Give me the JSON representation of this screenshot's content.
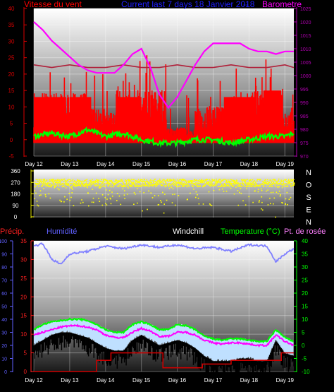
{
  "colors": {
    "wind": "#ff0000",
    "wind_axis": "#d80000",
    "baro": "#ff00ff",
    "baro_axis": "#b000b0",
    "title": "#2020ff",
    "gust_avg": "#b0203a",
    "avg_wind": "#00ff00",
    "direction": "#ffff00",
    "humidity": "#8080ff",
    "windchill": "#ffffff",
    "temperature": "#00ff00",
    "dewpoint": "#ff00ff",
    "precip": "#ff0000",
    "precip_axis": "#ff2020",
    "hum_axis": "#6060ff"
  },
  "chart_data": [
    {
      "type": "line",
      "name": "wind-pressure",
      "title": "Current last 7 days 18 Janvier 2018",
      "left_label": "Vitesse du vent",
      "right_label": "Barometre",
      "categories": [
        "Day 12",
        "Day 13",
        "Day 14",
        "Day 15",
        "Day 16",
        "Day 17",
        "Day 18",
        "Day 19"
      ],
      "ylim_left": [
        -5,
        40
      ],
      "yticks_left": [
        -5,
        0,
        5,
        10,
        15,
        20,
        25,
        30,
        35,
        40
      ],
      "ylim_right": [
        970,
        1025
      ],
      "yticks_right": [
        970,
        975,
        980,
        985,
        990,
        995,
        1000,
        1005,
        1010,
        1015,
        1020,
        1025
      ],
      "grid": true,
      "series": [
        {
          "key": "pressure",
          "axis": "right",
          "x": [
            12.0,
            12.25,
            12.5,
            12.75,
            13.0,
            13.25,
            13.5,
            13.75,
            14.0,
            14.25,
            14.5,
            14.75,
            15.0,
            15.25,
            15.5,
            15.75,
            16.0,
            16.25,
            16.5,
            16.75,
            17.0,
            17.25,
            17.5,
            17.75,
            18.0,
            18.25,
            18.5,
            18.75,
            19.0,
            19.25
          ],
          "values": [
            1020,
            1017,
            1013,
            1010,
            1007,
            1004,
            1002,
            1001,
            1001,
            1001,
            1004,
            1008,
            1010,
            1003,
            993,
            988,
            992,
            998,
            1004,
            1009,
            1012,
            1012,
            1012,
            1012,
            1010,
            1009,
            1009,
            1008,
            1009,
            1009
          ]
        },
        {
          "key": "gust_level",
          "axis": "right",
          "x": [
            12.0,
            12.5,
            13.0,
            13.5,
            14.0,
            14.5,
            15.0,
            15.5,
            16.0,
            16.5,
            17.0,
            17.5,
            18.0,
            18.5,
            19.0,
            19.25
          ],
          "values": [
            1004,
            1003,
            1004,
            1003,
            1003,
            1004,
            1003,
            1003,
            1004,
            1003,
            1003,
            1004,
            1003,
            1003,
            1004,
            1003
          ]
        },
        {
          "key": "avg_wind",
          "axis": "left",
          "x": [
            12.0,
            12.5,
            13.0,
            13.5,
            14.0,
            14.5,
            15.0,
            15.5,
            16.0,
            16.5,
            17.0,
            17.5,
            18.0,
            18.5,
            19.0,
            19.25
          ],
          "values": [
            1,
            2,
            1,
            3,
            1,
            2,
            0,
            -1,
            -1,
            0,
            0,
            -1,
            0,
            1,
            1,
            2
          ]
        }
      ]
    },
    {
      "type": "scatter",
      "name": "wind-direction",
      "categories": [
        "Day 12",
        "Day 13",
        "Day 14",
        "Day 15",
        "Day 16",
        "Day 17",
        "Day 18",
        "Day 19"
      ],
      "ylim": [
        0,
        360
      ],
      "yticks": [
        0,
        90,
        180,
        270,
        360
      ],
      "ytick_labels": [
        "0",
        "90",
        "180",
        "270",
        "360"
      ],
      "compass": [
        "N",
        "O",
        "S",
        "E",
        "N"
      ],
      "dominant_direction": 270
    },
    {
      "type": "line",
      "name": "temperature-humidity",
      "labels": {
        "precip": "Précip.",
        "humidity": "Humidité",
        "windchill": "Windchill",
        "temperature": "Temperature (°C)",
        "dewpoint": "Pt. de rosée"
      },
      "categories": [
        "Day 12",
        "Day 13",
        "Day 14",
        "Day 15",
        "Day 16",
        "Day 17",
        "Day 18",
        "Day 19"
      ],
      "ylim_precip": [
        0,
        35
      ],
      "yticks_precip": [
        0,
        5,
        10,
        15,
        20,
        25,
        30,
        35
      ],
      "ylim_humidity": [
        0,
        100
      ],
      "yticks_humidity": [
        0,
        10,
        20,
        30,
        40,
        50,
        60,
        70,
        80,
        90,
        100
      ],
      "ylim_temp": [
        -10,
        40
      ],
      "yticks_temp": [
        -10,
        -5,
        0,
        5,
        10,
        15,
        20,
        25,
        30,
        35,
        40
      ],
      "grid": true,
      "series": [
        {
          "key": "humidity",
          "axis": "humidity",
          "x": [
            12.0,
            12.25,
            12.5,
            12.75,
            13.0,
            13.5,
            14.0,
            14.5,
            15.0,
            15.5,
            16.0,
            16.5,
            17.0,
            17.5,
            18.0,
            18.5,
            18.75,
            19.0,
            19.25
          ],
          "values": [
            96,
            98,
            86,
            82,
            90,
            92,
            96,
            94,
            97,
            95,
            97,
            94,
            95,
            92,
            97,
            96,
            84,
            90,
            94
          ]
        },
        {
          "key": "temperature",
          "axis": "temp",
          "x": [
            12.0,
            12.25,
            12.5,
            12.75,
            13.0,
            13.25,
            13.5,
            13.75,
            14.0,
            14.25,
            14.5,
            14.75,
            15.0,
            15.25,
            15.5,
            15.75,
            16.0,
            16.25,
            16.5,
            16.75,
            17.0,
            17.25,
            17.5,
            17.75,
            18.0,
            18.25,
            18.5,
            18.75,
            19.0,
            19.25
          ],
          "values": [
            6,
            8,
            9,
            9.5,
            10,
            10,
            9.5,
            8,
            6,
            5,
            5,
            8,
            9,
            8,
            6,
            6,
            8,
            7.5,
            6,
            3.5,
            2.5,
            2,
            2.5,
            2.5,
            2,
            1.5,
            1.5,
            6,
            3,
            1.5
          ]
        },
        {
          "key": "dewpoint",
          "axis": "temp",
          "x": [
            12.0,
            12.25,
            12.5,
            12.75,
            13.0,
            13.25,
            13.5,
            13.75,
            14.0,
            14.25,
            14.5,
            14.75,
            15.0,
            15.25,
            15.5,
            15.75,
            16.0,
            16.25,
            16.5,
            16.75,
            17.0,
            17.25,
            17.5,
            17.75,
            18.0,
            18.25,
            18.5,
            18.75,
            19.0,
            19.25
          ],
          "values": [
            4,
            5,
            6,
            7,
            7.5,
            7.5,
            7,
            6,
            4,
            3,
            3,
            5,
            6.5,
            5.5,
            3.5,
            3.5,
            5,
            5,
            4,
            2,
            1,
            0.5,
            1,
            1,
            0.5,
            0,
            0,
            4,
            1.5,
            0
          ]
        },
        {
          "key": "windchill",
          "axis": "temp",
          "x": [
            12.0,
            12.25,
            12.5,
            12.75,
            13.0,
            13.25,
            13.5,
            13.75,
            14.0,
            14.25,
            14.5,
            14.75,
            15.0,
            15.25,
            15.5,
            15.75,
            16.0,
            16.25,
            16.5,
            16.75,
            17.0,
            17.25,
            17.5,
            17.75,
            18.0,
            18.25,
            18.5,
            18.75,
            19.0,
            19.25
          ],
          "values": [
            0,
            2,
            4,
            5,
            5,
            4,
            3,
            1,
            -1,
            -2,
            -2,
            2,
            4,
            2,
            0,
            1,
            2,
            1,
            -1,
            -4,
            -6,
            -6,
            -6,
            -5,
            -5,
            -6,
            -6,
            2,
            -3,
            -4
          ]
        },
        {
          "key": "precip",
          "axis": "precip",
          "x": [
            12.0,
            13.0,
            13.7,
            13.75,
            14.0,
            14.1,
            14.15,
            15.0,
            15.5,
            15.6,
            16.0,
            16.7,
            17.0,
            17.5,
            18.0,
            18.5,
            18.85,
            18.9,
            19.25
          ],
          "values": [
            0,
            0,
            0,
            3,
            3,
            3,
            5,
            5,
            5,
            1,
            1,
            2,
            2,
            3,
            3,
            3,
            3,
            5,
            5
          ]
        }
      ]
    }
  ]
}
